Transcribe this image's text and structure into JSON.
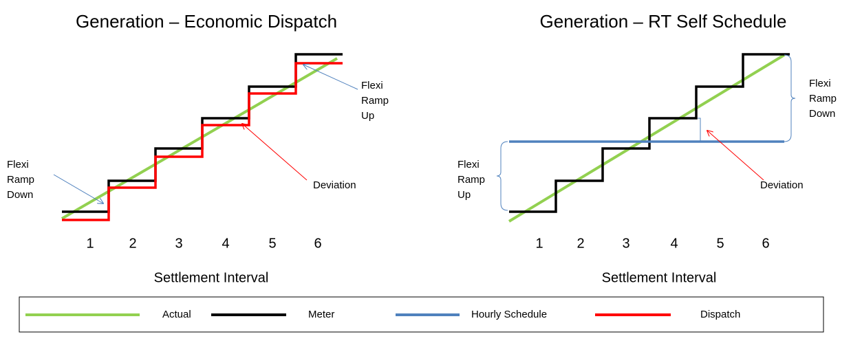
{
  "left": {
    "title": "Generation – Economic Dispatch",
    "annotations": {
      "flexi_ramp_down": [
        "Flexi",
        "Ramp",
        "Down"
      ],
      "deviation": "Deviation",
      "flexi_ramp_up": [
        "Flexi",
        "Ramp",
        "Up"
      ]
    },
    "intervals": [
      "1",
      "2",
      "3",
      "4",
      "5",
      "6"
    ],
    "axis_label": "Settlement Interval"
  },
  "right": {
    "title": "Generation – RT Self Schedule",
    "annotations": {
      "flexi_ramp_down": [
        "Flexi",
        "Ramp",
        "Down"
      ],
      "deviation": "Deviation",
      "flexi_ramp_up": [
        "Flexi",
        "Ramp",
        "Up"
      ]
    },
    "intervals": [
      "1",
      "2",
      "3",
      "4",
      "5",
      "6"
    ],
    "axis_label": "Settlement Interval"
  },
  "legend": [
    "Actual",
    "Meter",
    "Hourly Schedule",
    "Dispatch"
  ]
}
